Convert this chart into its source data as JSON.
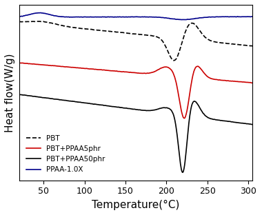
{
  "title": "",
  "xlabel": "Temperature(°C)",
  "ylabel": "Heat flow(W/g)",
  "xlim": [
    20,
    305
  ],
  "ylim_display": "auto",
  "x_ticks": [
    50,
    100,
    150,
    200,
    250,
    300
  ],
  "legend_labels": [
    "PBT",
    "PBT+PPAA5phr",
    "PBT+PPAA50phr",
    "PPAA-1.0X"
  ],
  "legend_colors": [
    "black",
    "#cc0000",
    "black",
    "#00008B"
  ],
  "legend_styles": [
    "dashed",
    "solid",
    "solid",
    "solid"
  ],
  "background_color": "#ffffff",
  "font_size_axis_label": 11,
  "font_size_tick": 9
}
